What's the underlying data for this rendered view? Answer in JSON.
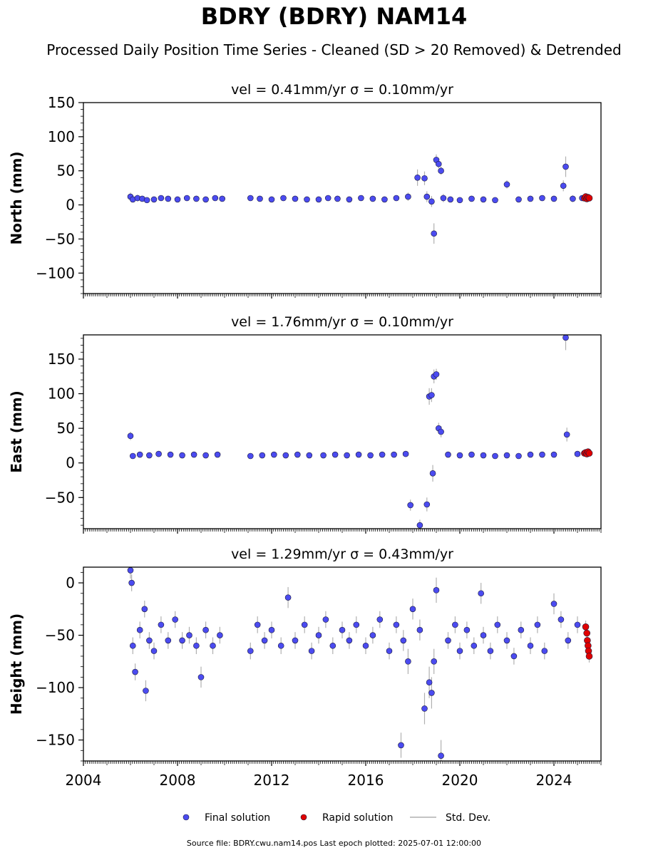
{
  "page": {
    "title": "BDRY (BDRY) NAM14",
    "subtitle": "Processed Daily Position Time Series - Cleaned (SD > 20 Removed) & Detrended",
    "footer": "Source file: BDRY.cwu.nam14.pos  Last epoch plotted: 2025-07-01 12:00:00"
  },
  "colors": {
    "final": "#4b4bf0",
    "rapid": "#e00000",
    "stddev": "#b0b0b0",
    "edge": "#1a1a3a"
  },
  "legend": [
    "Final solution",
    "Rapid solution",
    "Std. Dev."
  ],
  "chart_data": [
    {
      "type": "scatter",
      "title": "vel = 0.41mm/yr   σ = 0.10mm/yr",
      "ylabel": "North (mm)",
      "xlim": [
        2004.0,
        2026.0
      ],
      "ylim": [
        -130,
        150
      ],
      "yticks": [
        -100,
        -50,
        0,
        50,
        100,
        150
      ],
      "xticks": [
        2004,
        2008,
        2012,
        2016,
        2020,
        2024
      ],
      "show_xtick_labels": false,
      "grid": false,
      "series": [
        {
          "name": "Final solution",
          "x": [
            2006.0,
            2006.1,
            2006.3,
            2006.5,
            2006.7,
            2007.0,
            2007.3,
            2007.6,
            2008.0,
            2008.4,
            2008.8,
            2009.2,
            2009.6,
            2009.9,
            2011.1,
            2011.5,
            2012.0,
            2012.5,
            2013.0,
            2013.5,
            2014.0,
            2014.4,
            2014.8,
            2015.3,
            2015.8,
            2016.3,
            2016.8,
            2017.3,
            2017.8,
            2018.2,
            2018.5,
            2018.6,
            2018.8,
            2018.9,
            2019.0,
            2019.1,
            2019.2,
            2019.3,
            2019.6,
            2020.0,
            2020.5,
            2021.0,
            2021.5,
            2022.0,
            2022.5,
            2023.0,
            2023.5,
            2024.0,
            2024.4,
            2024.5,
            2024.8,
            2025.2
          ],
          "y": [
            12,
            8,
            10,
            9,
            7,
            8,
            10,
            9,
            8,
            10,
            9,
            8,
            10,
            9,
            10,
            9,
            8,
            10,
            9,
            8,
            8,
            10,
            9,
            8,
            10,
            9,
            8,
            10,
            12,
            40,
            39,
            12,
            5,
            -42,
            66,
            60,
            50,
            10,
            8,
            7,
            9,
            8,
            7,
            30,
            8,
            9,
            10,
            9,
            28,
            56,
            9,
            10
          ],
          "yerr": [
            6,
            4,
            5,
            4,
            4,
            4,
            4,
            4,
            4,
            4,
            4,
            4,
            4,
            4,
            4,
            4,
            4,
            4,
            4,
            4,
            4,
            4,
            4,
            4,
            4,
            4,
            4,
            4,
            6,
            12,
            10,
            8,
            8,
            15,
            8,
            6,
            6,
            6,
            4,
            4,
            4,
            4,
            4,
            6,
            4,
            4,
            4,
            4,
            8,
            15,
            5,
            4
          ]
        },
        {
          "name": "Rapid solution",
          "x": [
            2025.3,
            2025.35,
            2025.4,
            2025.45,
            2025.5
          ],
          "y": [
            10,
            12,
            9,
            11,
            10
          ],
          "yerr": [
            4,
            4,
            4,
            4,
            4
          ]
        }
      ]
    },
    {
      "type": "scatter",
      "title": "vel = 1.76mm/yr   σ = 0.10mm/yr",
      "ylabel": "East (mm)",
      "xlim": [
        2004.0,
        2026.0
      ],
      "ylim": [
        -95,
        185
      ],
      "yticks": [
        -50,
        0,
        50,
        100,
        150
      ],
      "xticks": [
        2004,
        2008,
        2012,
        2016,
        2020,
        2024
      ],
      "show_xtick_labels": false,
      "grid": false,
      "series": [
        {
          "name": "Final solution",
          "x": [
            2006.0,
            2006.1,
            2006.4,
            2006.8,
            2007.2,
            2007.7,
            2008.2,
            2008.7,
            2009.2,
            2009.7,
            2011.1,
            2011.6,
            2012.1,
            2012.6,
            2013.1,
            2013.6,
            2014.2,
            2014.7,
            2015.2,
            2015.7,
            2016.2,
            2016.7,
            2017.2,
            2017.7,
            2017.9,
            2018.3,
            2018.6,
            2018.7,
            2018.8,
            2018.85,
            2018.9,
            2019.0,
            2019.1,
            2019.2,
            2019.5,
            2020.0,
            2020.5,
            2021.0,
            2021.5,
            2022.0,
            2022.5,
            2023.0,
            2023.5,
            2024.0,
            2024.5,
            2024.55,
            2025.0
          ],
          "y": [
            39,
            10,
            12,
            11,
            13,
            12,
            11,
            12,
            11,
            12,
            10,
            11,
            12,
            11,
            12,
            11,
            11,
            12,
            11,
            12,
            11,
            12,
            12,
            13,
            -61,
            -90,
            -60,
            96,
            98,
            -15,
            125,
            128,
            50,
            45,
            12,
            11,
            12,
            11,
            10,
            11,
            10,
            12,
            12,
            12,
            181,
            41,
            13
          ],
          "yerr": [
            6,
            4,
            4,
            4,
            4,
            4,
            4,
            4,
            4,
            4,
            4,
            4,
            4,
            4,
            4,
            4,
            4,
            4,
            4,
            4,
            4,
            4,
            4,
            4,
            8,
            8,
            10,
            12,
            10,
            12,
            10,
            8,
            8,
            8,
            4,
            4,
            4,
            4,
            4,
            4,
            4,
            4,
            4,
            4,
            18,
            10,
            4
          ]
        },
        {
          "name": "Rapid solution",
          "x": [
            2025.3,
            2025.35,
            2025.4,
            2025.45,
            2025.5
          ],
          "y": [
            14,
            15,
            13,
            16,
            14
          ],
          "yerr": [
            4,
            4,
            4,
            4,
            4
          ]
        }
      ]
    },
    {
      "type": "scatter",
      "title": "vel = 1.29mm/yr   σ = 0.43mm/yr",
      "ylabel": "Height (mm)",
      "xlim": [
        2004.0,
        2026.0
      ],
      "ylim": [
        -170,
        15
      ],
      "yticks": [
        -150,
        -100,
        -50,
        0
      ],
      "xticks": [
        2004,
        2008,
        2012,
        2016,
        2020,
        2024
      ],
      "show_xtick_labels": true,
      "grid": false,
      "series": [
        {
          "name": "Final solution",
          "x": [
            2006.0,
            2006.05,
            2006.1,
            2006.2,
            2006.4,
            2006.6,
            2006.65,
            2006.8,
            2007.0,
            2007.3,
            2007.6,
            2007.9,
            2008.2,
            2008.5,
            2008.8,
            2009.0,
            2009.2,
            2009.5,
            2009.8,
            2011.1,
            2011.4,
            2011.7,
            2012.0,
            2012.4,
            2012.7,
            2013.0,
            2013.4,
            2013.7,
            2014.0,
            2014.3,
            2014.6,
            2015.0,
            2015.3,
            2015.6,
            2016.0,
            2016.3,
            2016.6,
            2017.0,
            2017.3,
            2017.5,
            2017.6,
            2017.8,
            2018.0,
            2018.3,
            2018.5,
            2018.7,
            2018.8,
            2018.9,
            2019.0,
            2019.2,
            2019.5,
            2019.8,
            2020.0,
            2020.3,
            2020.6,
            2020.9,
            2021.0,
            2021.3,
            2021.6,
            2022.0,
            2022.3,
            2022.6,
            2023.0,
            2023.3,
            2023.6,
            2024.0,
            2024.3,
            2024.6,
            2025.0
          ],
          "y": [
            12,
            0,
            -60,
            -85,
            -45,
            -25,
            -103,
            -55,
            -65,
            -40,
            -55,
            -35,
            -55,
            -50,
            -60,
            -90,
            -45,
            -60,
            -50,
            -65,
            -40,
            -55,
            -45,
            -60,
            -14,
            -55,
            -40,
            -65,
            -50,
            -35,
            -60,
            -45,
            -55,
            -40,
            -60,
            -50,
            -35,
            -65,
            -40,
            -155,
            -55,
            -75,
            -25,
            -45,
            -120,
            -95,
            -105,
            -75,
            -7,
            -165,
            -55,
            -40,
            -65,
            -45,
            -60,
            -10,
            -50,
            -65,
            -40,
            -55,
            -70,
            -45,
            -60,
            -40,
            -65,
            -20,
            -35,
            -55,
            -40
          ],
          "yerr": [
            8,
            8,
            8,
            8,
            8,
            8,
            10,
            8,
            8,
            8,
            8,
            8,
            8,
            8,
            8,
            10,
            8,
            8,
            8,
            8,
            8,
            8,
            8,
            8,
            10,
            8,
            8,
            8,
            8,
            8,
            8,
            8,
            8,
            8,
            8,
            8,
            8,
            8,
            8,
            12,
            10,
            12,
            10,
            10,
            15,
            15,
            15,
            12,
            12,
            15,
            8,
            8,
            8,
            8,
            8,
            10,
            8,
            8,
            8,
            8,
            8,
            8,
            8,
            8,
            8,
            10,
            8,
            8,
            8
          ]
        },
        {
          "name": "Rapid solution",
          "x": [
            2025.35,
            2025.4,
            2025.42,
            2025.45,
            2025.47,
            2025.5
          ],
          "y": [
            -42,
            -48,
            -55,
            -60,
            -65,
            -70
          ],
          "yerr": [
            6,
            6,
            6,
            6,
            6,
            6
          ]
        }
      ]
    }
  ]
}
